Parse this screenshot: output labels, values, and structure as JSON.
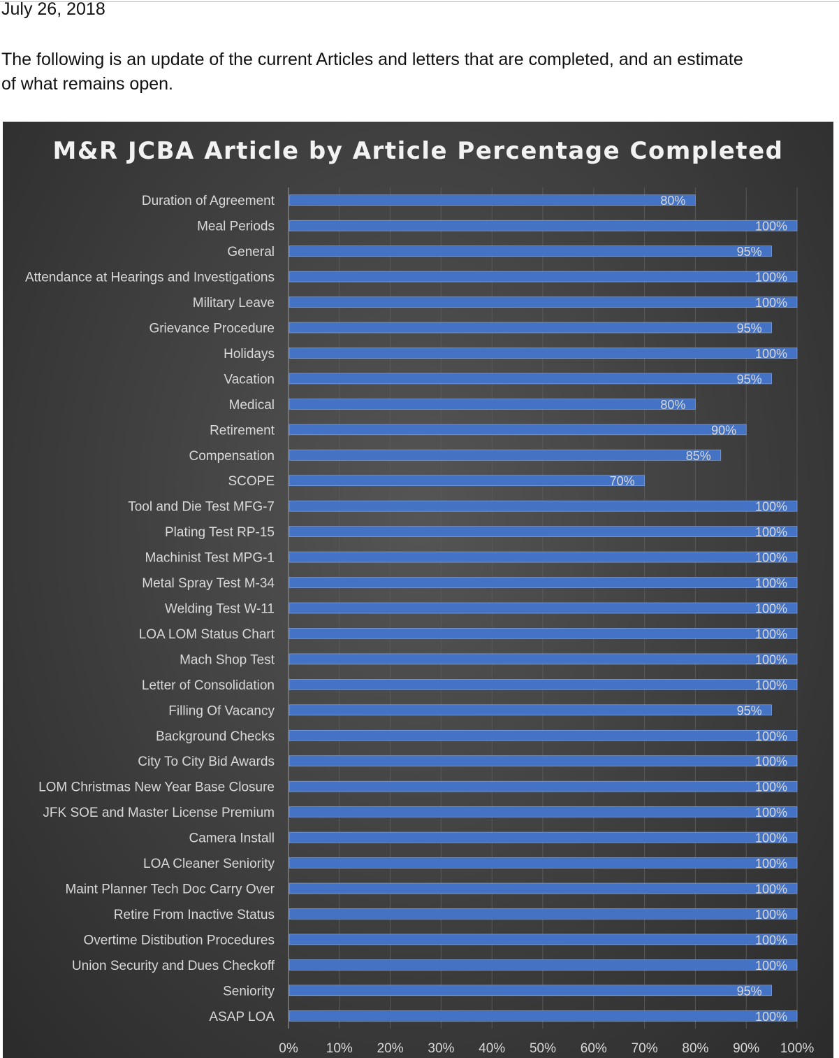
{
  "document": {
    "date": "July 26, 2018",
    "intro": "The following is an update of the current Articles and letters that are completed, and an estimate of what remains open."
  },
  "colors": {
    "bar": "#4472c4",
    "background": "#404040",
    "text": "#d9d9d9",
    "gridline": "#595959"
  },
  "chart_data": {
    "type": "bar",
    "orientation": "horizontal",
    "title": "M&R JCBA Article by Article Percentage Completed",
    "xlabel": "",
    "ylabel": "",
    "xlim": [
      0,
      100
    ],
    "x_ticks": [
      "0%",
      "10%",
      "20%",
      "30%",
      "40%",
      "50%",
      "60%",
      "70%",
      "80%",
      "90%",
      "100%"
    ],
    "grid": true,
    "categories": [
      "Duration of Agreement",
      "Meal Periods",
      "General",
      "Attendance at Hearings and Investigations",
      "Military Leave",
      "Grievance Procedure",
      "Holidays",
      "Vacation",
      "Medical",
      "Retirement",
      "Compensation",
      "SCOPE",
      "Tool and Die Test MFG-7",
      "Plating Test RP-15",
      "Machinist Test MPG-1",
      "Metal Spray Test M-34",
      "Welding Test W-11",
      "LOA LOM Status Chart",
      "Mach Shop Test",
      "Letter of Consolidation",
      "Filling Of Vacancy",
      "Background Checks",
      "City To City Bid Awards",
      "LOM Christmas New Year Base Closure",
      "JFK SOE and Master License Premium",
      "Camera Install",
      "LOA Cleaner Seniority",
      "Maint Planner Tech Doc Carry Over",
      "Retire From Inactive Status",
      "Overtime Distibution Procedures",
      "Union Security and Dues Checkoff",
      "Seniority",
      "ASAP LOA"
    ],
    "values": [
      80,
      100,
      95,
      100,
      100,
      95,
      100,
      95,
      80,
      90,
      85,
      70,
      100,
      100,
      100,
      100,
      100,
      100,
      100,
      100,
      95,
      100,
      100,
      100,
      100,
      100,
      100,
      100,
      100,
      100,
      100,
      95,
      100
    ],
    "data_labels": [
      "80%",
      "100%",
      "95%",
      "100%",
      "100%",
      "95%",
      "100%",
      "95%",
      "80%",
      "90%",
      "85%",
      "70%",
      "100%",
      "100%",
      "100%",
      "100%",
      "100%",
      "100%",
      "100%",
      "100%",
      "95%",
      "100%",
      "100%",
      "100%",
      "100%",
      "100%",
      "100%",
      "100%",
      "100%",
      "100%",
      "100%",
      "95%",
      "100%"
    ]
  }
}
